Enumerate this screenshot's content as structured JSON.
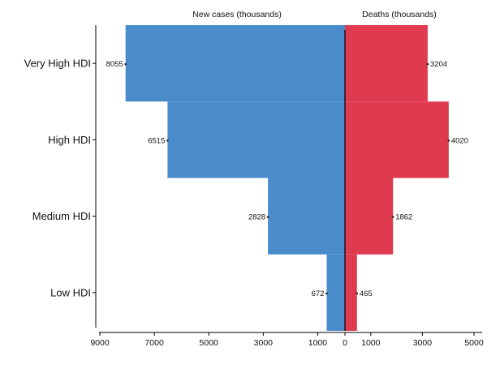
{
  "chart_data": {
    "type": "bar",
    "orientation": "horizontal",
    "layout": "back-to-back population pyramid",
    "categories": [
      "Very High HDI",
      "High HDI",
      "Medium HDI",
      "Low HDI"
    ],
    "series": [
      {
        "name": "New cases (thousands)",
        "values": [
          8055,
          6515,
          2828,
          672
        ],
        "color": "#4a8ccb",
        "side": "left"
      },
      {
        "name": "Deaths (thousands)",
        "values": [
          3204,
          4020,
          1862,
          465
        ],
        "color": "#e03a4e",
        "side": "right"
      }
    ],
    "left_axis": {
      "range": [
        0,
        9000
      ],
      "ticks": [
        9000,
        7000,
        5000,
        3000,
        1000,
        0
      ],
      "reversed": true
    },
    "right_axis": {
      "range": [
        0,
        5000
      ],
      "ticks": [
        1000,
        3000,
        5000
      ]
    },
    "grid": false,
    "legend": "none"
  }
}
